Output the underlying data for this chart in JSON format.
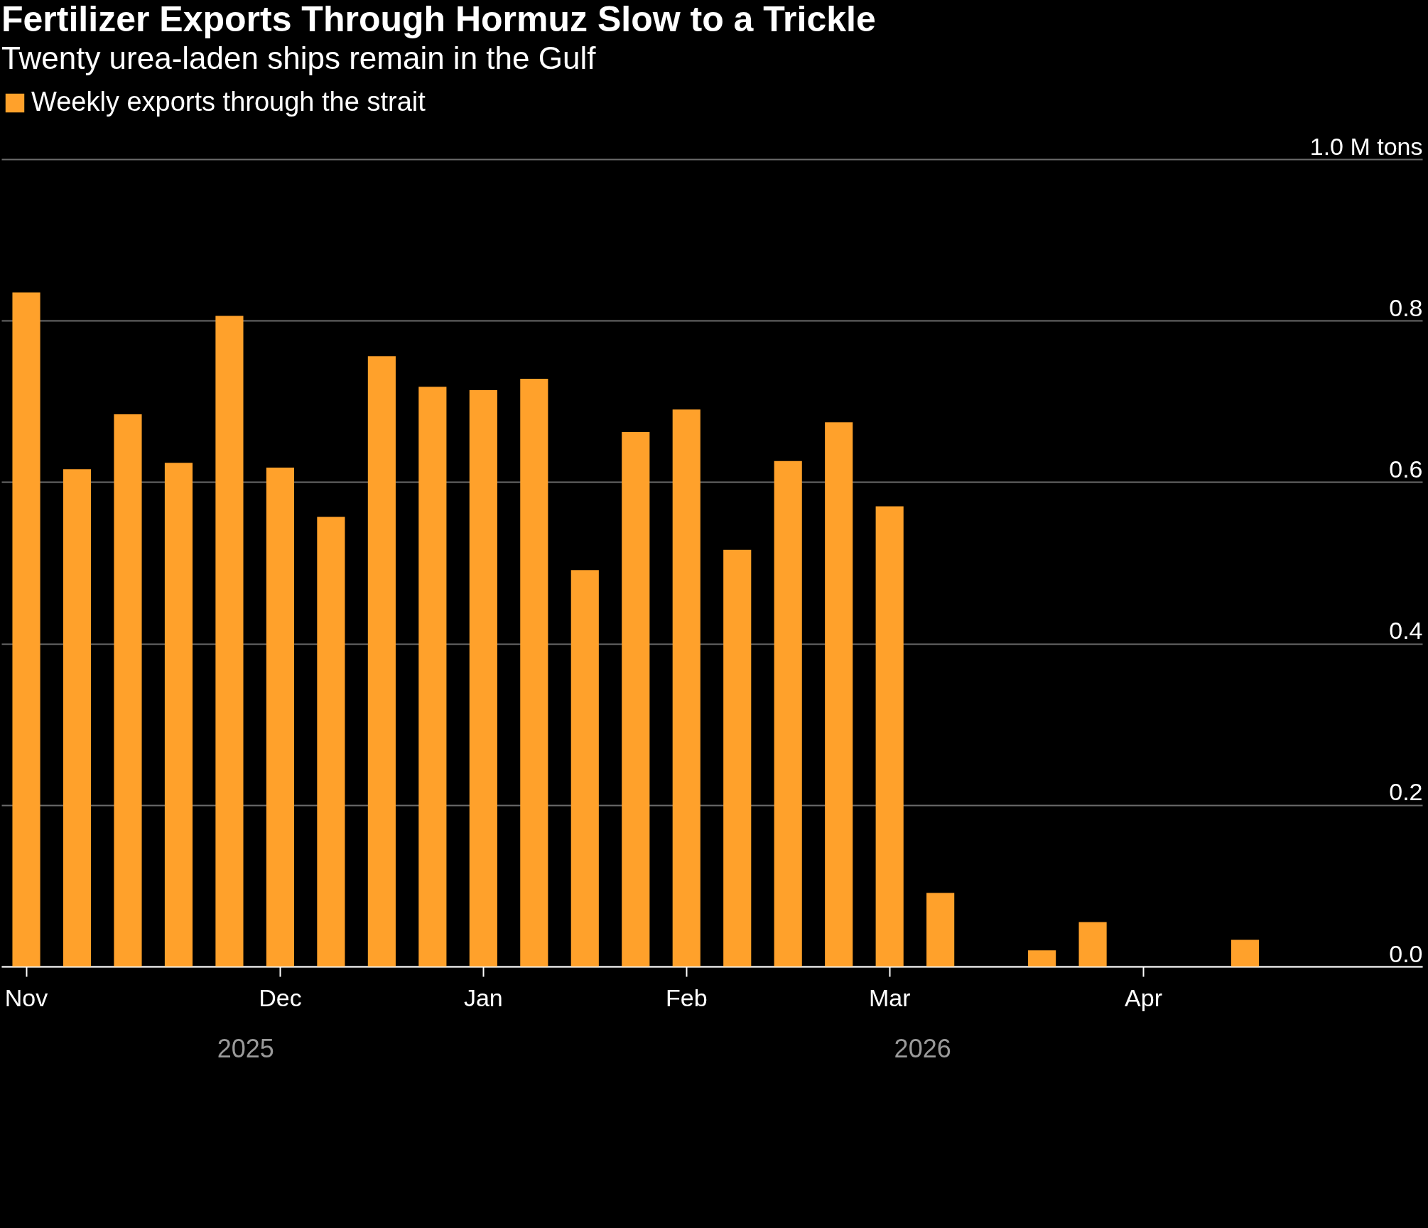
{
  "chart_data": {
    "type": "bar",
    "title": "Fertilizer Exports Through Hormuz Slow to a Trickle",
    "subtitle": "Twenty urea-laden ships remain in the Gulf",
    "categories": [
      "Nov",
      null,
      null,
      null,
      null,
      "Dec",
      null,
      null,
      null,
      "Jan",
      null,
      null,
      null,
      "Feb",
      null,
      null,
      null,
      "Mar",
      null,
      null,
      null,
      null,
      "Apr",
      null,
      null,
      null,
      null,
      null
    ],
    "series": [
      {
        "name": "Weekly exports through the strait",
        "color": "#ffa12b",
        "values": [
          0.835,
          0.616,
          0.684,
          0.624,
          0.806,
          0.618,
          0.557,
          0.756,
          0.718,
          0.714,
          0.728,
          0.491,
          0.662,
          0.69,
          0.516,
          0.626,
          0.674,
          0.57,
          0.091,
          0,
          0.02,
          0.055,
          0,
          0,
          0.033,
          null,
          null,
          null
        ]
      }
    ],
    "ylim": [
      0,
      1
    ],
    "yticks": [
      {
        "value": 0,
        "label": "0.0"
      },
      {
        "value": 0.2,
        "label": "0.2"
      },
      {
        "value": 0.4,
        "label": "0.4"
      },
      {
        "value": 0.6,
        "label": "0.6"
      },
      {
        "value": 0.8,
        "label": "0.8"
      },
      {
        "value": 1,
        "label": "1.0 M tons"
      }
    ],
    "annotations": [
      "2025",
      "2026"
    ],
    "grid": "y",
    "legend": "top left"
  }
}
